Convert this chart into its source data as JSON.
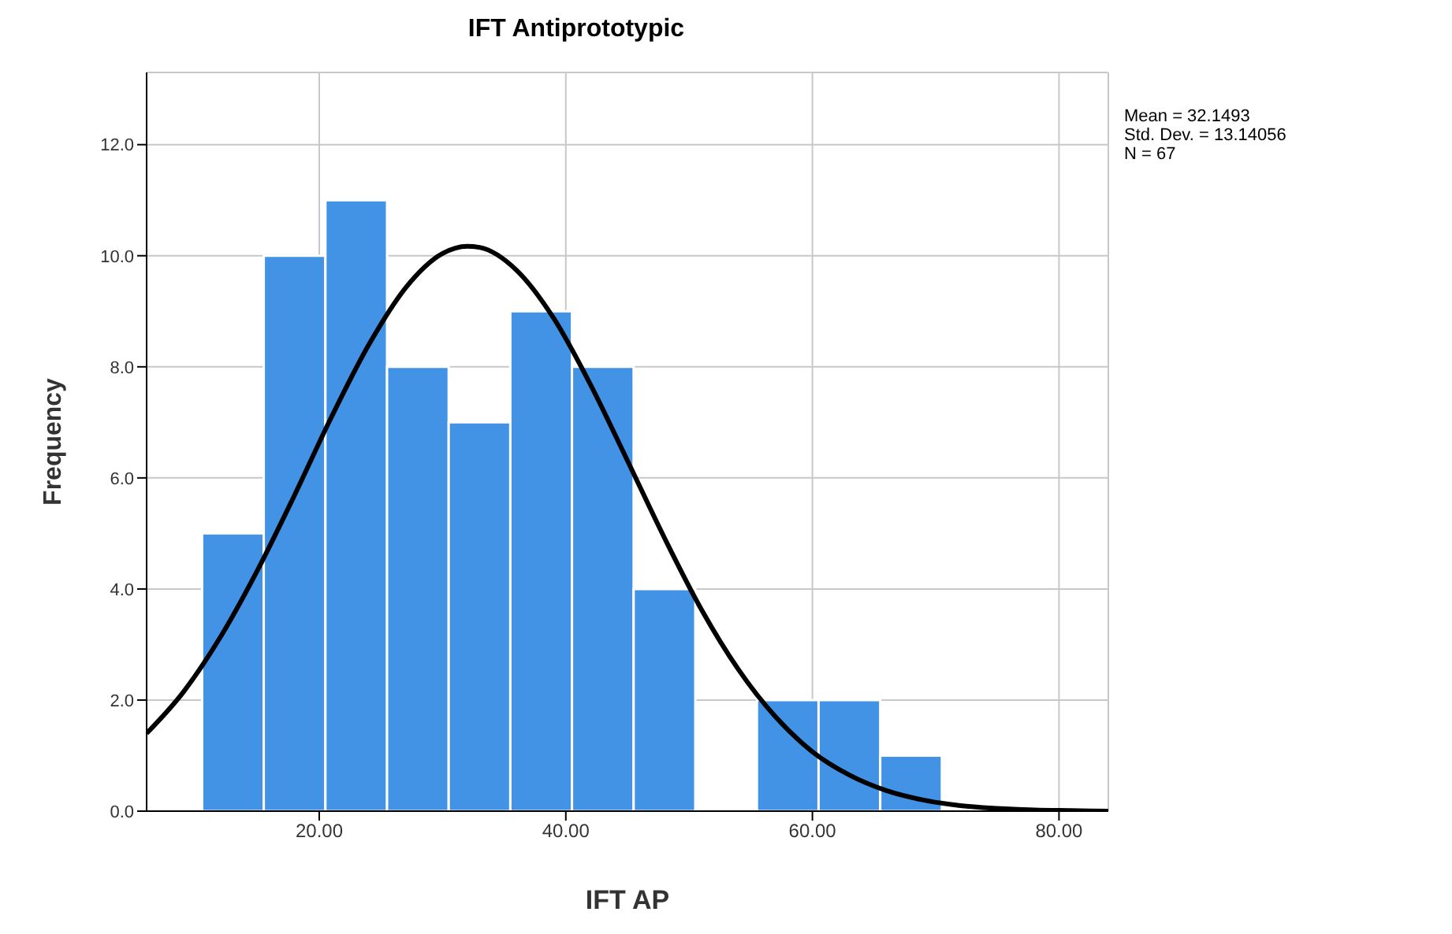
{
  "chart_data": {
    "type": "histogram",
    "title": "IFT Antiprototypic",
    "xlabel": "IFT AP",
    "ylabel": "Frequency",
    "bins": [
      10.5,
      15.5,
      20.5,
      25.5,
      30.5,
      35.5,
      40.5,
      45.5,
      50.5,
      55.5,
      60.5,
      65.5,
      70.5
    ],
    "values": [
      5,
      10,
      11,
      8,
      7,
      9,
      8,
      4,
      0,
      2,
      2,
      1
    ],
    "color": "#4293e6",
    "series": [
      {
        "type": "line",
        "color": "#000000",
        "x": [
          6,
          9,
          12,
          15,
          18,
          21,
          24,
          27,
          30,
          32,
          33,
          36,
          39,
          42,
          45,
          48,
          51,
          54,
          57,
          60,
          63,
          66,
          69,
          72,
          75,
          78,
          81,
          84
        ],
        "values": [
          1.4,
          2.15,
          3.14,
          4.34,
          5.69,
          7.1,
          8.39,
          9.42,
          10.04,
          10.17,
          10.15,
          9.74,
          8.88,
          7.68,
          6.31,
          4.92,
          3.63,
          2.55,
          1.7,
          1.07,
          0.65,
          0.37,
          0.2,
          0.1,
          0.05,
          0.02,
          0.01,
          0
        ]
      }
    ],
    "xlim": [
      6,
      84
    ],
    "xticks": [
      {
        "value": 20,
        "label": "20.00"
      },
      {
        "value": 40,
        "label": "40.00"
      },
      {
        "value": 60,
        "label": "60.00"
      },
      {
        "value": 80,
        "label": "80.00"
      }
    ],
    "ylim": [
      0,
      13.3
    ],
    "yticks": [
      {
        "value": 0,
        "label": "0.0"
      },
      {
        "value": 2,
        "label": "2.0"
      },
      {
        "value": 4,
        "label": "4.0"
      },
      {
        "value": 6,
        "label": "6.0"
      },
      {
        "value": 8,
        "label": "8.0"
      },
      {
        "value": 10,
        "label": "10.0"
      },
      {
        "value": 12,
        "label": "12.0"
      }
    ],
    "grid": true,
    "legend": false,
    "marker": "none",
    "line_style": "solid",
    "annotations": [
      "Mean = 32.1493",
      "Std. Dev. = 13.14056",
      "N = 67"
    ]
  }
}
